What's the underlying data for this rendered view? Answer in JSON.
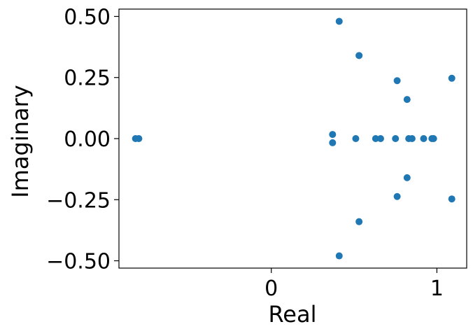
{
  "chart_data": {
    "type": "scatter",
    "title": "",
    "xlabel": "Real",
    "ylabel": "Imaginary",
    "xlim": [
      -0.92,
      1.18
    ],
    "ylim": [
      -0.53,
      0.53
    ],
    "xticks": [
      {
        "value": 0,
        "label": "0"
      },
      {
        "value": 1,
        "label": "1"
      }
    ],
    "yticks": [
      {
        "value": 0.5,
        "label": "0.50"
      },
      {
        "value": 0.25,
        "label": "0.25"
      },
      {
        "value": 0.0,
        "label": "0.00"
      },
      {
        "value": -0.25,
        "label": "−0.25"
      },
      {
        "value": -0.5,
        "label": "−0.50"
      }
    ],
    "grid": false,
    "marker_color": "#1f77b4",
    "series": [
      {
        "points": [
          {
            "x": -0.82,
            "y": 0.0
          },
          {
            "x": -0.8,
            "y": 0.0
          },
          {
            "x": 0.37,
            "y": 0.017
          },
          {
            "x": 0.37,
            "y": -0.017
          },
          {
            "x": 0.41,
            "y": 0.48
          },
          {
            "x": 0.41,
            "y": -0.48
          },
          {
            "x": 0.51,
            "y": 0.0
          },
          {
            "x": 0.53,
            "y": 0.34
          },
          {
            "x": 0.53,
            "y": -0.34
          },
          {
            "x": 0.63,
            "y": 0.0
          },
          {
            "x": 0.66,
            "y": 0.0
          },
          {
            "x": 0.75,
            "y": 0.0
          },
          {
            "x": 0.76,
            "y": 0.237
          },
          {
            "x": 0.76,
            "y": -0.237
          },
          {
            "x": 0.82,
            "y": 0.16
          },
          {
            "x": 0.82,
            "y": -0.16
          },
          {
            "x": 0.83,
            "y": 0.0
          },
          {
            "x": 0.85,
            "y": 0.0
          },
          {
            "x": 0.92,
            "y": 0.0
          },
          {
            "x": 0.97,
            "y": 0.0
          },
          {
            "x": 0.98,
            "y": 0.0
          },
          {
            "x": 1.09,
            "y": 0.247
          },
          {
            "x": 1.09,
            "y": -0.247
          }
        ]
      }
    ]
  }
}
